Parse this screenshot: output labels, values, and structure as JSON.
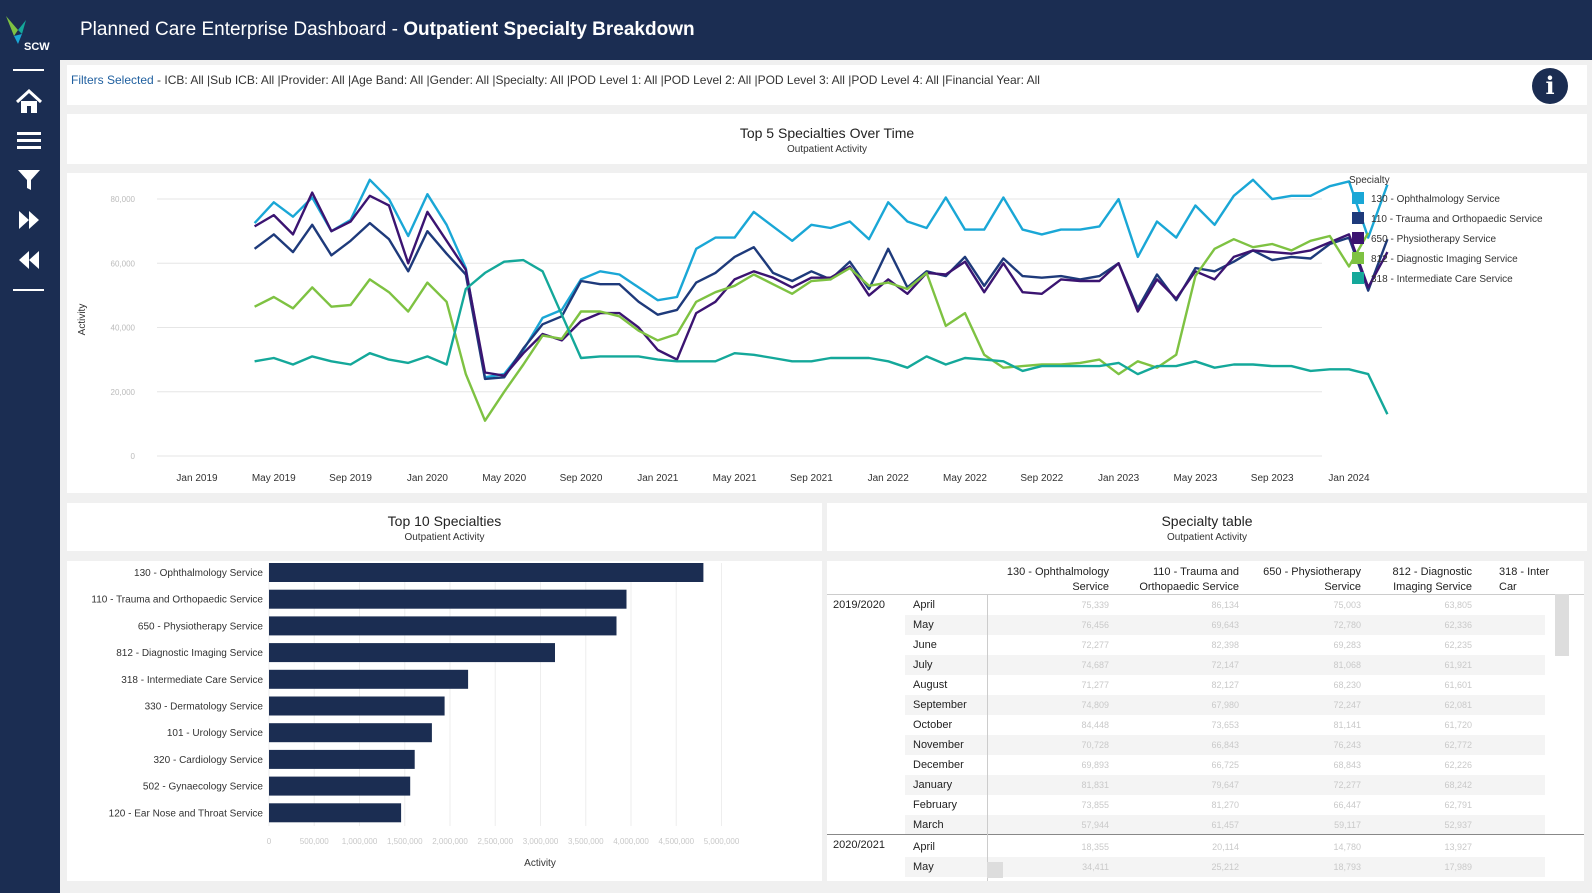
{
  "header": {
    "title_prefix": "Planned Care Enterprise Dashboard - ",
    "title_bold": "Outpatient Specialty Breakdown",
    "logo_text": "SCW"
  },
  "sidebar": {
    "items": [
      {
        "icon": "home-icon"
      },
      {
        "icon": "menu-icon"
      },
      {
        "icon": "filter-icon"
      },
      {
        "icon": "fast-forward-icon"
      },
      {
        "icon": "rewind-icon"
      }
    ]
  },
  "filters": {
    "label": "Filters Selected",
    "text": " - ICB: All |Sub ICB: All |Provider: All |Age Band: All |Gender: All |Specialty: All |POD Level 1: All |POD Level 2: All |POD Level 3: All |POD Level 4: All |Financial Year: All",
    "info_label": "i"
  },
  "colors": {
    "header_bg": "#1b2d52",
    "bar": "#1b2d52",
    "series": [
      "#1aa7d6",
      "#1e3a7b",
      "#3b1471",
      "#7ec242",
      "#14a89a"
    ]
  },
  "chart1": {
    "title": "Top 5 Specialties Over Time",
    "subtitle": "Outpatient Activity",
    "ylabel": "Activity",
    "legend_title": "Specialty"
  },
  "chart2": {
    "title": "Top 10 Specialties",
    "subtitle": "Outpatient Activity",
    "xlabel": "Activity"
  },
  "table": {
    "title": "Specialty table",
    "subtitle": "Outpatient Activity",
    "columns": [
      [
        "130 - Ophthalmology",
        "Service"
      ],
      [
        "110 - Trauma and",
        "Orthopaedic Service"
      ],
      [
        "650 - Physiotherapy",
        "Service"
      ],
      [
        "812 - Diagnostic",
        "Imaging Service"
      ],
      [
        "318 - Inter",
        "Car"
      ]
    ],
    "years": [
      "2019/2020",
      "2020/2021"
    ],
    "months": [
      "April",
      "May",
      "June",
      "July",
      "August",
      "September",
      "October",
      "November",
      "December",
      "January",
      "February",
      "March",
      "April",
      "May"
    ],
    "values": [
      [
        "75,339",
        "86,134",
        "75,003",
        "63,805"
      ],
      [
        "76,456",
        "69,643",
        "72,780",
        "62,336"
      ],
      [
        "72,277",
        "82,398",
        "69,283",
        "62,235"
      ],
      [
        "74,687",
        "72,147",
        "81,068",
        "61,921"
      ],
      [
        "71,277",
        "82,127",
        "68,230",
        "61,601"
      ],
      [
        "74,809",
        "67,980",
        "72,247",
        "62,081"
      ],
      [
        "84,448",
        "73,653",
        "81,141",
        "61,720"
      ],
      [
        "70,728",
        "66,843",
        "76,243",
        "62,772"
      ],
      [
        "69,893",
        "66,725",
        "68,843",
        "62,226"
      ],
      [
        "81,831",
        "79,647",
        "72,277",
        "68,242"
      ],
      [
        "73,855",
        "81,270",
        "66,447",
        "62,791"
      ],
      [
        "57,944",
        "61,457",
        "59,117",
        "52,937"
      ],
      [
        "18,355",
        "20,114",
        "14,780",
        "13,927"
      ],
      [
        "34,411",
        "25,212",
        "18,793",
        "17,989"
      ]
    ]
  },
  "chart_data": [
    {
      "type": "line",
      "title": "Top 5 Specialties Over Time",
      "subtitle": "Outpatient Activity",
      "ylabel": "Activity",
      "ylim": [
        0,
        85000
      ],
      "yticks": [
        "0",
        "20,000",
        "40,000",
        "60,000",
        "80,000"
      ],
      "xticks": [
        "Jan 2019",
        "May 2019",
        "Sep 2019",
        "Jan 2020",
        "May 2020",
        "Sep 2020",
        "Jan 2021",
        "May 2021",
        "Sep 2021",
        "Jan 2022",
        "May 2022",
        "Sep 2022",
        "Jan 2023",
        "May 2023",
        "Sep 2023",
        "Jan 2024"
      ],
      "x_start": "Apr 2019",
      "x_end": "Jan 2024",
      "legend_position": "right",
      "series": [
        {
          "name": "130 - Ophthalmology Service",
          "values": [
            72500,
            79000,
            74500,
            80500,
            70000,
            73500,
            86000,
            80000,
            68500,
            81500,
            72000,
            58500,
            24500,
            25500,
            33000,
            43000,
            45500,
            55000,
            57500,
            56500,
            52500,
            48500,
            49500,
            64500,
            68000,
            68000,
            76000,
            71500,
            67000,
            72000,
            71000,
            73000,
            67500,
            79000,
            73000,
            71000,
            80500,
            70500,
            70500,
            80500,
            70500,
            69000,
            70500,
            70500,
            71500,
            80000,
            62000,
            73000,
            68000,
            78000,
            72000,
            81000,
            86000,
            80000,
            81000,
            81000,
            84000,
            85500,
            68000,
            84500
          ]
        },
        {
          "name": "110 - Trauma and Orthopaedic Service",
          "values": [
            64500,
            69000,
            63500,
            72000,
            62500,
            67000,
            72500,
            67500,
            57500,
            70000,
            63000,
            56500,
            24000,
            24500,
            33500,
            41000,
            43500,
            54500,
            53500,
            53500,
            48000,
            44000,
            45500,
            54000,
            57000,
            62000,
            65000,
            57000,
            54500,
            57500,
            55000,
            60500,
            52000,
            64500,
            52500,
            57500,
            56000,
            62000,
            53000,
            61500,
            56000,
            55500,
            56000,
            55000,
            56000,
            60000,
            46000,
            56500,
            48500,
            58500,
            57500,
            60500,
            64000,
            61000,
            62000,
            61500,
            66000,
            68000,
            51500,
            67500
          ]
        },
        {
          "name": "650 - Physiotherapy Service",
          "values": [
            71500,
            75000,
            69000,
            82000,
            70000,
            73000,
            81000,
            78000,
            60000,
            76000,
            67000,
            58000,
            26000,
            25000,
            32000,
            38000,
            36000,
            42000,
            44500,
            44500,
            40000,
            33000,
            30000,
            44500,
            48000,
            55000,
            57500,
            55500,
            52500,
            55500,
            55500,
            59000,
            50000,
            55000,
            50500,
            57000,
            56500,
            60500,
            51000,
            60000,
            51000,
            50500,
            55000,
            54500,
            54500,
            60000,
            45000,
            55000,
            49000,
            57500,
            55000,
            62000,
            64000,
            63500,
            63000,
            64000,
            66500,
            69000,
            52500,
            63500
          ]
        },
        {
          "name": "812 - Diagnostic Imaging Service",
          "values": [
            46500,
            49500,
            46000,
            52500,
            46500,
            47000,
            55000,
            51000,
            45000,
            54000,
            48000,
            25500,
            11000,
            20000,
            28500,
            37500,
            36500,
            45000,
            45000,
            43500,
            39000,
            36000,
            38000,
            48000,
            51000,
            53000,
            56500,
            53500,
            50500,
            54500,
            55000,
            58500,
            53000,
            54000,
            52000,
            57000,
            40500,
            44500,
            31500,
            27500,
            28000,
            28500,
            28500,
            29000,
            30000,
            25500,
            29500,
            27500,
            31500,
            56000,
            64500,
            67500,
            65000,
            66000,
            64000,
            67000,
            68500,
            59000,
            69500
          ]
        },
        {
          "name": "318 - Intermediate Care Service",
          "values": [
            29500,
            30500,
            28500,
            31000,
            29500,
            28500,
            32000,
            30000,
            29000,
            31000,
            28500,
            52000,
            57000,
            60500,
            61000,
            57500,
            44000,
            30500,
            31000,
            31000,
            31000,
            30000,
            29500,
            29500,
            29500,
            32000,
            31500,
            30500,
            29500,
            29500,
            30500,
            30500,
            30500,
            29500,
            27500,
            31000,
            28500,
            30500,
            30000,
            29500,
            26500,
            28000,
            28000,
            28000,
            28000,
            29000,
            25500,
            28000,
            28000,
            29500,
            27500,
            28500,
            28500,
            28000,
            28000,
            26500,
            27000,
            27000,
            25500,
            13000
          ]
        }
      ]
    },
    {
      "type": "bar",
      "orientation": "horizontal",
      "title": "Top 10 Specialties",
      "subtitle": "Outpatient Activity",
      "xlabel": "Activity",
      "xlim": [
        0,
        6000000
      ],
      "xticks": [
        "0",
        "500,000",
        "1,000,000",
        "1,500,000",
        "2,000,000",
        "2,500,000",
        "3,000,000",
        "3,500,000",
        "4,000,000",
        "4,500,000",
        "5,000,000"
      ],
      "categories": [
        "130 - Ophthalmology Service",
        "110 - Trauma and Orthopaedic Service",
        "650 - Physiotherapy Service",
        "812 - Diagnostic Imaging Service",
        "318 - Intermediate Care Service",
        "330 - Dermatology Service",
        "101 - Urology Service",
        "320 - Cardiology Service",
        "502 - Gynaecology Service",
        "120 - Ear Nose and Throat Service"
      ],
      "values": [
        4800000,
        3950000,
        3840000,
        3160000,
        2200000,
        1940000,
        1800000,
        1610000,
        1560000,
        1460000
      ]
    }
  ]
}
